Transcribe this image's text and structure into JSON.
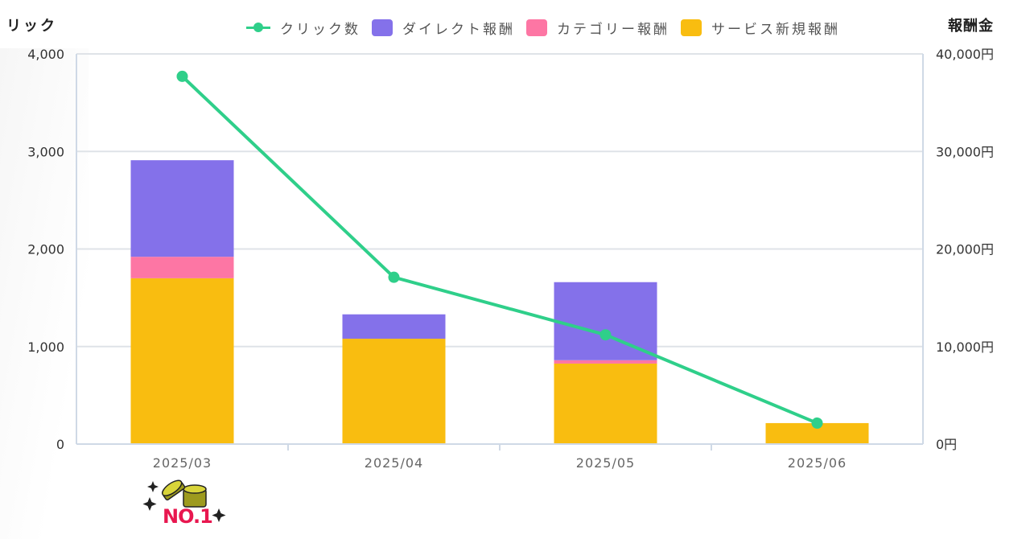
{
  "chart_data": {
    "type": "bar",
    "subtype": "stacked bar + line (dual axis)",
    "categories": [
      "2025/03",
      "2025/04",
      "2025/05",
      "2025/06"
    ],
    "series": [
      {
        "name": "サービス新規報酬",
        "type": "bar",
        "axis": "right",
        "color": "#f9bd10",
        "values": [
          17000,
          10800,
          8250,
          2150
        ]
      },
      {
        "name": "カテゴリー報酬",
        "type": "bar",
        "axis": "right",
        "color": "#fd76a4",
        "values": [
          2200,
          0,
          350,
          0
        ]
      },
      {
        "name": "ダイレクト報酬",
        "type": "bar",
        "axis": "right",
        "color": "#8471ea",
        "values": [
          9900,
          2500,
          8000,
          0
        ]
      },
      {
        "name": "クリック数",
        "type": "line",
        "axis": "left",
        "color": "#2fcf8a",
        "values": [
          3770,
          1710,
          1120,
          215
        ]
      }
    ],
    "title": "",
    "xlabel": "",
    "ylabel": "クリック",
    "y2label": "報酬金",
    "ylim": [
      0,
      4000
    ],
    "y2lim": [
      0,
      40000
    ],
    "yticks": [
      "0",
      "1,000",
      "2,000",
      "3,000",
      "4,000"
    ],
    "y2ticks": [
      "0円",
      "10,000円",
      "20,000円",
      "30,000円",
      "40,000円"
    ],
    "legend_position": "top",
    "grid": true
  },
  "axes": {
    "left_title": "リック",
    "right_title": "報酬金"
  },
  "legend": {
    "items": [
      {
        "label": "クリック数",
        "kind": "line",
        "color": "#2fcf8a"
      },
      {
        "label": "ダイレクト報酬",
        "kind": "box",
        "color": "#8471ea"
      },
      {
        "label": "カテゴリー報酬",
        "kind": "box",
        "color": "#fd76a4"
      },
      {
        "label": "サービス新規報酬",
        "kind": "box",
        "color": "#f9bd10"
      }
    ]
  },
  "badge": {
    "text": "NO.1",
    "icon": "coins-icon"
  }
}
